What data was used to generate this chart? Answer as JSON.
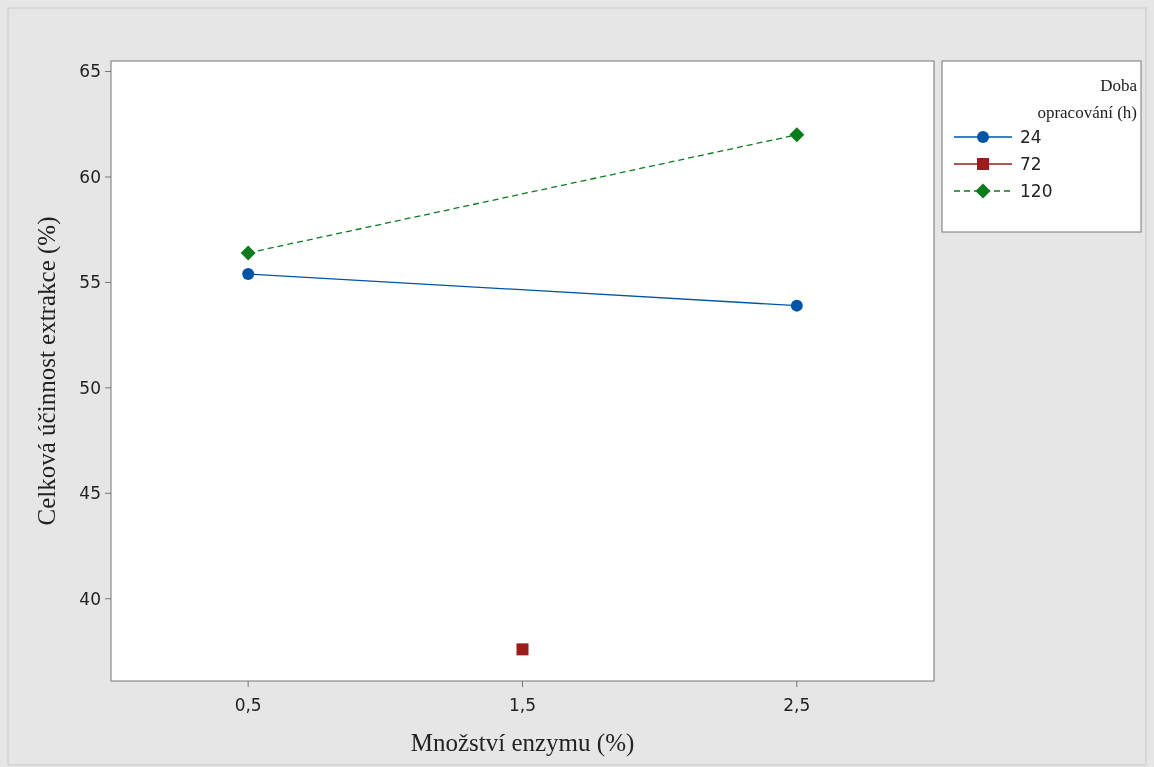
{
  "chart_data": {
    "type": "line",
    "xlabel": "Množství enzymu (%)",
    "ylabel": "Celková účinnost extrakce (%)",
    "legend_title": "Doba opracování (h)",
    "legend": "right",
    "xlim": [
      0,
      3
    ],
    "xticks": [
      {
        "value": 0.5,
        "label": "0,5"
      },
      {
        "value": 1.5,
        "label": "1,5"
      },
      {
        "value": 2.5,
        "label": "2,5"
      }
    ],
    "ylim": [
      36.1,
      65.5
    ],
    "yticks": [
      40,
      45,
      50,
      55,
      60,
      65
    ],
    "grid": false,
    "series": [
      {
        "name": "24",
        "color": "#0054a6",
        "x": [
          0.5,
          2.5
        ],
        "values": [
          55.4,
          53.9
        ],
        "marker": "circle",
        "line_style": "solid"
      },
      {
        "name": "72",
        "color": "#9b1c1c",
        "x": [
          1.5
        ],
        "values": [
          37.6
        ],
        "marker": "square",
        "line_style": "solid"
      },
      {
        "name": "120",
        "color": "#0a7c1e",
        "x": [
          0.5,
          2.5
        ],
        "values": [
          56.4,
          62.0
        ],
        "marker": "diamond",
        "line_style": "dashed"
      }
    ]
  }
}
